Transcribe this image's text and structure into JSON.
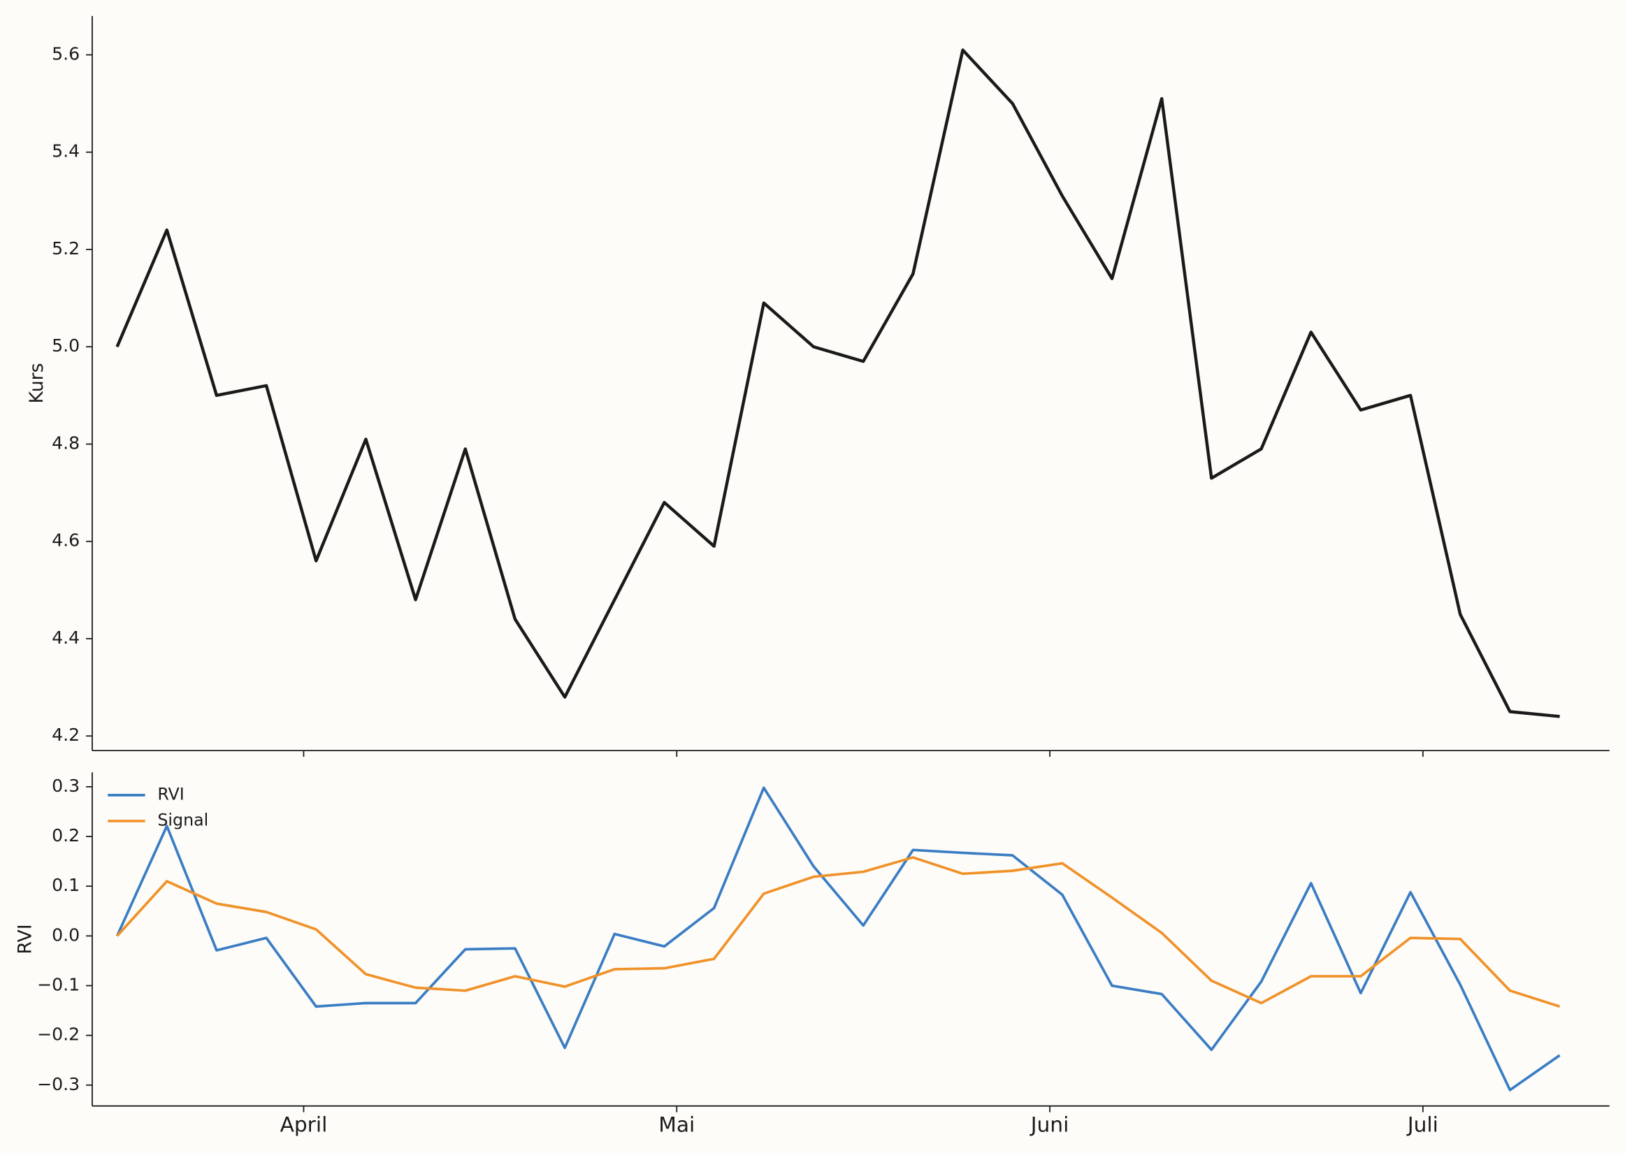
{
  "chart_data": [
    {
      "type": "line",
      "ylabel": "Kurs",
      "x": [
        0,
        1,
        2,
        3,
        4,
        5,
        6,
        7,
        8,
        9,
        10,
        11,
        12,
        13,
        14,
        15,
        16,
        17,
        18,
        19,
        20,
        21,
        22,
        23,
        24,
        25,
        26,
        27,
        28,
        29
      ],
      "values": [
        5.0,
        5.24,
        4.9,
        4.92,
        4.56,
        4.81,
        4.48,
        4.79,
        4.44,
        4.28,
        4.48,
        4.68,
        4.59,
        5.09,
        5.0,
        4.97,
        5.15,
        5.61,
        5.5,
        5.31,
        5.14,
        5.51,
        4.73,
        4.79,
        5.03,
        4.87,
        4.9,
        4.45,
        4.25,
        4.24
      ],
      "color": "#1a1a1a",
      "xlim": [
        -0.5,
        30
      ],
      "ylim": [
        4.17,
        5.68
      ],
      "yticks": [
        4.2,
        4.4,
        4.6,
        4.8,
        {
          "value": 5,
          "label": "5.0"
        },
        5.2,
        5.4,
        5.6
      ]
    },
    {
      "type": "line",
      "ylabel": "RVI",
      "x": [
        0,
        1,
        2,
        3,
        4,
        5,
        6,
        7,
        8,
        9,
        10,
        11,
        12,
        13,
        14,
        15,
        16,
        17,
        18,
        19,
        20,
        21,
        22,
        23,
        24,
        25,
        26,
        27,
        28,
        29
      ],
      "series": [
        {
          "name": "RVI",
          "color": "#3a7dc4",
          "values": [
            0,
            0.221,
            -0.029,
            -0.004,
            -0.142,
            -0.135,
            -0.135,
            -0.027,
            -0.025,
            -0.225,
            0.004,
            -0.021,
            0.056,
            0.298,
            0.14,
            0.021,
            0.173,
            0.167,
            0.162,
            0.083,
            -0.1,
            -0.117,
            -0.229,
            -0.092,
            0.106,
            -0.115,
            0.088,
            -0.098,
            -0.31,
            -0.24
          ]
        },
        {
          "name": "Signal",
          "color": "#f0922a",
          "values": [
            0,
            0.11,
            0.065,
            0.048,
            0.013,
            -0.077,
            -0.104,
            -0.11,
            -0.081,
            -0.102,
            -0.067,
            -0.065,
            -0.046,
            0.085,
            0.119,
            0.129,
            0.158,
            0.125,
            0.131,
            0.146,
            0.077,
            0.006,
            -0.09,
            -0.135,
            -0.081,
            -0.081,
            -0.004,
            -0.006,
            -0.11,
            -0.142
          ]
        }
      ],
      "legend": "upper left",
      "xlim": [
        -0.5,
        30
      ],
      "ylim": [
        -0.342,
        0.329
      ],
      "xticks": [
        {
          "value": 3.75,
          "label": "April"
        },
        {
          "value": 11.25,
          "label": "Mai"
        },
        {
          "value": 18.75,
          "label": "Juni"
        },
        {
          "value": 26.25,
          "label": "Juli"
        }
      ],
      "yticks": [
        {
          "value": -0.3,
          "label": "−0.3"
        },
        {
          "value": -0.2,
          "label": "−0.2"
        },
        {
          "value": -0.1,
          "label": "−0.1"
        },
        {
          "value": 0,
          "label": "0.0"
        },
        {
          "value": 0.1,
          "label": "0.1"
        },
        {
          "value": 0.2,
          "label": "0.2"
        },
        {
          "value": 0.3,
          "label": "0.3"
        }
      ]
    }
  ]
}
